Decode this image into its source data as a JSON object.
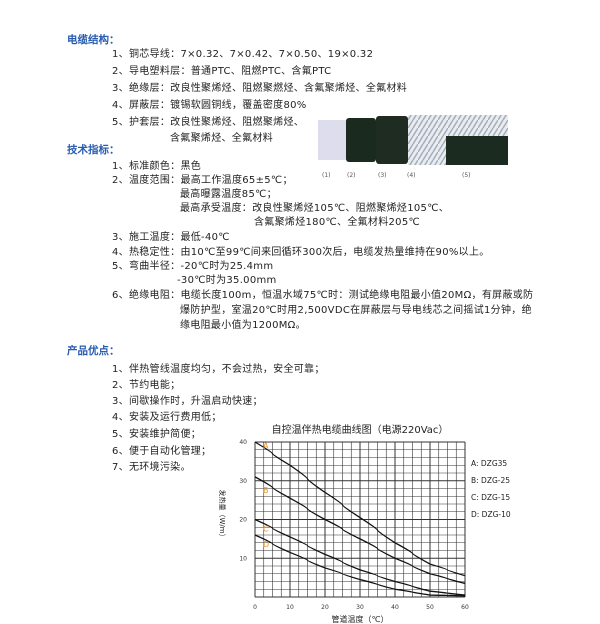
{
  "structure": {
    "heading": "电缆结构：",
    "items": [
      "1、铜芯导线：7×0.32、7×0.42、7×0.50、19×0.32",
      "2、导电塑料层：普通PTC、阻燃PTC、含氟PTC",
      "3、绝缘层：改良性聚烯烃、阻燃聚燃烃、含氟聚烯烃、全氟材料",
      "4、屏蔽层：镀锡软圆铜线，覆盖密度80%",
      "5、护套层：改良性聚烯烃、阻燃聚烯烃、",
      "含氟聚烯烃、全氟材料"
    ],
    "cable_labels": [
      "(1)",
      "(2)",
      "(3)",
      "(4)",
      "(5)"
    ]
  },
  "specs": {
    "heading": "技术指标：",
    "lines": [
      "1、标准颜色：黑色",
      "2、温度范围：最高工作温度65±5℃；",
      "最高曝露温度85℃；",
      "最高承受温度：改良性聚烯烃105℃、阻燃聚烯烃105℃、",
      "含氟聚烯烃180℃、全氟材料205℃",
      "3、施工温度：最低-40℃",
      "4、热稳定性：由10℃至99℃间来回循环300次后，电缆发热量维持在90%以上。",
      "5、弯曲半径：-20℃时为25.4mm",
      "-30℃时为35.00mm",
      "6、绝缘电阻：电缆长度100m，恒温水域75℃时：测试绝缘电阻最小值20MΩ，有屏蔽或防",
      "爆防护型，室温20℃时用2,500VDC在屏蔽层与导电线芯之间摇试1分钟，绝",
      "缘电阻最小值为1200MΩ。"
    ]
  },
  "advantages": {
    "heading": "产品优点：",
    "items": [
      "1、伴热管线温度均匀，不会过热，安全可靠；",
      "2、节约电能；",
      "3、间歇操作时，升温启动快速；",
      "4、安装及运行费用低；",
      "5、安装维护简便；",
      "6、便于自动化管理；",
      "7、无环境污染。"
    ]
  },
  "chart_data": {
    "type": "line",
    "title": "自控温伴热电缆曲线图（电源220Vac）",
    "xlabel": "管道温度（℃）",
    "ylabel": "发热量（W/m）",
    "xlim": [
      0,
      60
    ],
    "ylim": [
      0,
      40
    ],
    "xticks": [
      "0",
      "10",
      "20",
      "30",
      "40",
      "50",
      "60"
    ],
    "yticks": [
      "10",
      "20",
      "30",
      "40"
    ],
    "grid": true,
    "legend_position": "right",
    "x": [
      0,
      10,
      20,
      30,
      40,
      50,
      60
    ],
    "series": [
      {
        "name": "A: DZG35",
        "label": "A",
        "values": [
          42,
          34,
          27,
          20.5,
          14,
          8.5,
          5.5
        ]
      },
      {
        "name": "B: DZG-25",
        "label": "B",
        "values": [
          31,
          25.5,
          20,
          15,
          10,
          6,
          3.5
        ]
      },
      {
        "name": "C: DZG-15",
        "label": "C",
        "values": [
          20,
          15.5,
          11,
          7,
          4,
          1.5,
          0.5
        ]
      },
      {
        "name": "D: DZG-10",
        "label": "D",
        "values": [
          16,
          11.5,
          7.5,
          4.5,
          2,
          0.5,
          0.3
        ]
      }
    ],
    "colors": {
      "line": "#111111",
      "grid": "#333333",
      "curve_label": "#e8912a"
    }
  }
}
